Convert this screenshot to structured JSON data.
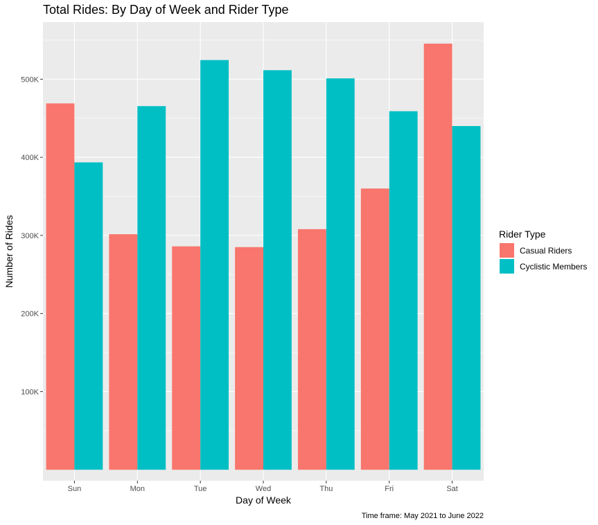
{
  "chart_data": {
    "type": "bar",
    "title": "Total Rides: By Day of Week and Rider Type",
    "xlabel": "Day of Week",
    "ylabel": "Number of Rides",
    "caption": "Time frame: May 2021 to June 2022",
    "categories": [
      "Sun",
      "Mon",
      "Tue",
      "Wed",
      "Thu",
      "Fri",
      "Sat"
    ],
    "series": [
      {
        "name": "Casual Riders",
        "color": "#F8766D",
        "values": [
          469000,
          301500,
          286000,
          285000,
          308000,
          360000,
          545500
        ]
      },
      {
        "name": "Cyclistic Members",
        "color": "#00BFC4",
        "values": [
          393500,
          465500,
          524500,
          511500,
          501000,
          459000,
          440000
        ]
      }
    ],
    "ylim": [
      -14000,
      573000
    ],
    "yticks": [
      100000,
      200000,
      300000,
      400000,
      500000
    ],
    "ytick_labels": [
      "100K",
      "200K",
      "300K",
      "400K",
      "500K"
    ],
    "legend": {
      "title": "Rider Type",
      "placement": "right"
    },
    "grid": true,
    "panel_background": "#EBEBEB",
    "grid_color": "#FFFFFF"
  }
}
